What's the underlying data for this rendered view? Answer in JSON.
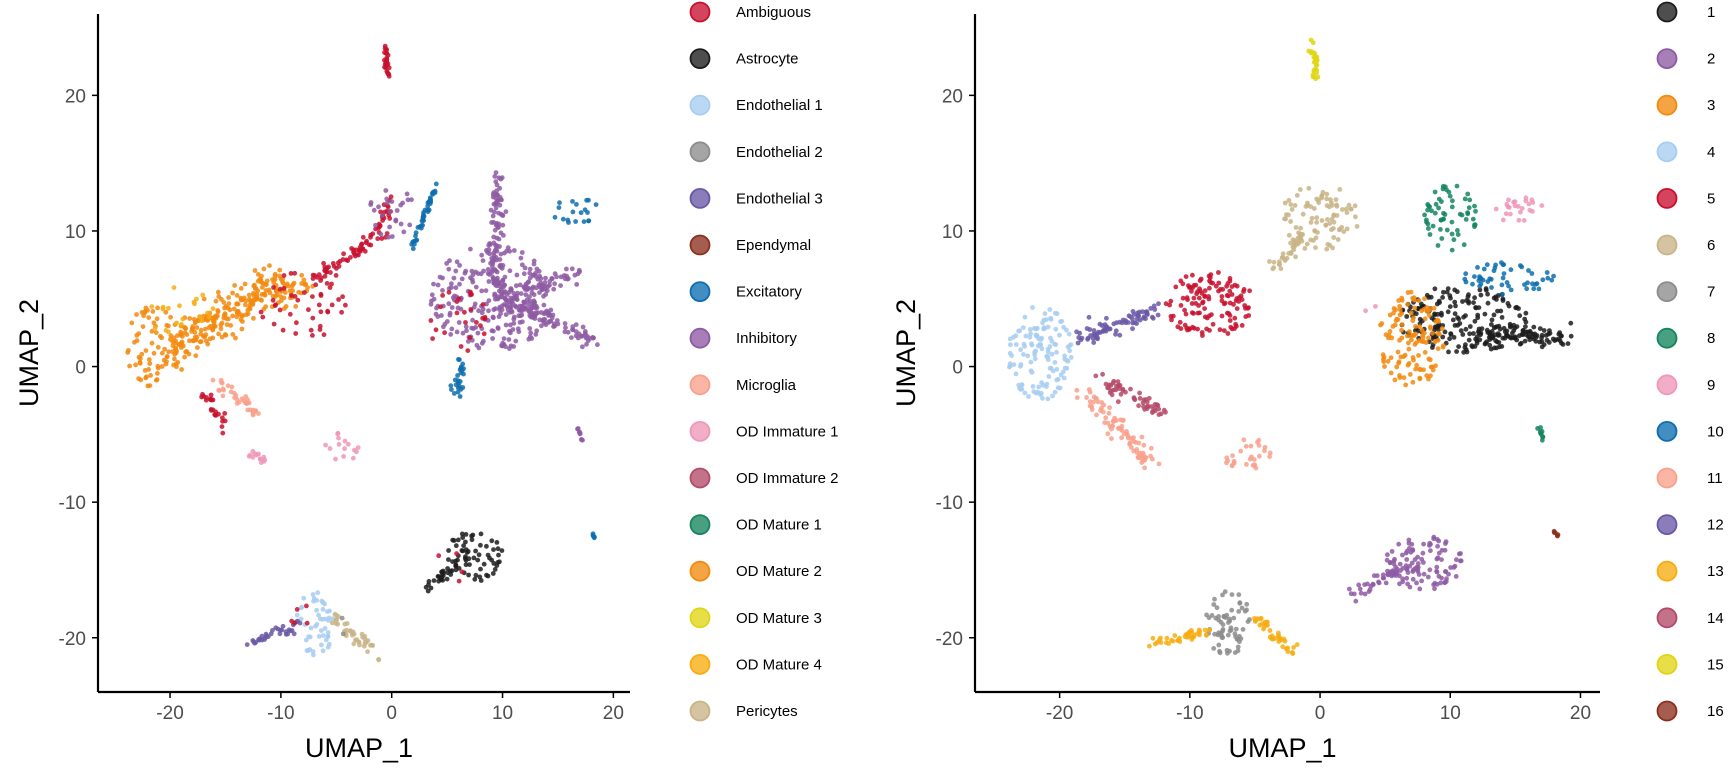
{
  "chart_data": [
    {
      "type": "scatter",
      "title": "",
      "xlabel": "UMAP_1",
      "ylabel": "UMAP_2",
      "xlim": [
        -26.5,
        21.5
      ],
      "ylim": [
        -24,
        26
      ],
      "x_ticks": [
        -20,
        -10,
        0,
        10,
        20
      ],
      "y_ticks": [
        -20,
        -10,
        0,
        10,
        20
      ],
      "x_tick_labels": [
        "-20",
        "-10",
        "0",
        "10",
        "20"
      ],
      "y_tick_labels": [
        "-20",
        "-10",
        "0",
        "10",
        "20"
      ],
      "grid": false,
      "legend_position": "right",
      "legend": [
        {
          "label": "Ambiguous",
          "color": "#C8102E"
        },
        {
          "label": "Astrocyte",
          "color": "#1C1C1C"
        },
        {
          "label": "Endothelial 1",
          "color": "#A7CDF1"
        },
        {
          "label": "Endothelial 2",
          "color": "#8C8C8C"
        },
        {
          "label": "Endothelial 3",
          "color": "#6A58A6"
        },
        {
          "label": "Ependymal",
          "color": "#8B2F1C"
        },
        {
          "label": "Excitatory",
          "color": "#0D6DAF"
        },
        {
          "label": "Inhibitory",
          "color": "#8E5AA3"
        },
        {
          "label": "Microglia",
          "color": "#F9A08C"
        },
        {
          "label": "OD Immature 1",
          "color": "#EE97B7"
        },
        {
          "label": "OD Immature 2",
          "color": "#B44A69"
        },
        {
          "label": "OD Mature 1",
          "color": "#14855E"
        },
        {
          "label": "OD Mature 2",
          "color": "#F28A0F"
        },
        {
          "label": "OD Mature 3",
          "color": "#E0D514"
        },
        {
          "label": "OD Mature 4",
          "color": "#F7AD11"
        },
        {
          "label": "Pericytes",
          "color": "#C8B486"
        }
      ],
      "clusters": [
        {
          "series": "Ambiguous",
          "color": "#C8102E",
          "shape": "line",
          "path": [
            [
              -0.6,
              24
            ],
            [
              -0.3,
              21
            ]
          ],
          "spread": 0.25
        },
        {
          "series": "OD Mature 2",
          "color": "#F28A0F",
          "shape": "blob",
          "center": [
            -21.5,
            1.5
          ],
          "radius": [
            2.5,
            3
          ],
          "density": 2
        },
        {
          "series": "OD Mature 2",
          "color": "#F28A0F",
          "shape": "line",
          "path": [
            [
              -20,
              1
            ],
            [
              -16,
              3.5
            ],
            [
              -12,
              5.5
            ],
            [
              -8,
              6
            ]
          ],
          "spread": 1.4
        },
        {
          "series": "OD Mature 4",
          "color": "#F7AD11",
          "shape": "blob",
          "center": [
            -19,
            4
          ],
          "radius": [
            3,
            2
          ],
          "density": 0.8
        },
        {
          "series": "Ambiguous",
          "color": "#C8102E",
          "shape": "blob",
          "center": [
            -8,
            4.5
          ],
          "radius": [
            4,
            2.5
          ],
          "density": 1
        },
        {
          "series": "Ambiguous",
          "color": "#C8102E",
          "shape": "line",
          "path": [
            [
              -7,
              6.5
            ],
            [
              -4,
              8
            ],
            [
              -1,
              10
            ],
            [
              0,
              12
            ]
          ],
          "spread": 0.6
        },
        {
          "series": "Inhibitory",
          "color": "#8E5AA3",
          "shape": "blob",
          "center": [
            0,
            11.5
          ],
          "radius": [
            2,
            2
          ],
          "density": 1.5
        },
        {
          "series": "Inhibitory",
          "color": "#8E5AA3",
          "shape": "blob",
          "center": [
            9,
            5
          ],
          "radius": [
            5.5,
            4
          ],
          "density": 2.5
        },
        {
          "series": "Inhibitory",
          "color": "#8E5AA3",
          "shape": "line",
          "path": [
            [
              9.5,
              14
            ],
            [
              9.5,
              5
            ]
          ],
          "spread": 0.7
        },
        {
          "series": "Inhibitory",
          "color": "#8E5AA3",
          "shape": "line",
          "path": [
            [
              10,
              5
            ],
            [
              18,
              2
            ]
          ],
          "spread": 0.7
        },
        {
          "series": "Inhibitory",
          "color": "#8E5AA3",
          "shape": "line",
          "path": [
            [
              10,
              5
            ],
            [
              17,
              7
            ]
          ],
          "spread": 0.7
        },
        {
          "series": "Ambiguous",
          "color": "#C8102E",
          "shape": "blob",
          "center": [
            6,
            3.5
          ],
          "radius": [
            3,
            2.5
          ],
          "density": 0.8
        },
        {
          "series": "Excitatory",
          "color": "#0D6DAF",
          "shape": "blob",
          "center": [
            16.5,
            11.5
          ],
          "radius": [
            2.2,
            1
          ],
          "density": 2
        },
        {
          "series": "Excitatory",
          "color": "#0D6DAF",
          "shape": "line",
          "path": [
            [
              6,
              0.5
            ],
            [
              6,
              -2
            ]
          ],
          "spread": 0.6
        },
        {
          "series": "Excitatory",
          "color": "#0D6DAF",
          "shape": "line",
          "path": [
            [
              2,
              9
            ],
            [
              4,
              13.5
            ]
          ],
          "spread": 0.2
        },
        {
          "series": "Microglia",
          "color": "#F9A08C",
          "shape": "line",
          "path": [
            [
              -16,
              -1
            ],
            [
              -12,
              -3.5
            ]
          ],
          "spread": 0.5
        },
        {
          "series": "Ambiguous",
          "color": "#C8102E",
          "shape": "line",
          "path": [
            [
              -17,
              -2
            ],
            [
              -15,
              -4.5
            ]
          ],
          "spread": 0.4
        },
        {
          "series": "OD Immature 1",
          "color": "#EE97B7",
          "shape": "line",
          "path": [
            [
              -13,
              -6
            ],
            [
              -11.5,
              -7
            ]
          ],
          "spread": 0.3
        },
        {
          "series": "OD Immature 1",
          "color": "#EE97B7",
          "shape": "blob",
          "center": [
            -4.5,
            -6
          ],
          "radius": [
            1.5,
            1.2
          ],
          "density": 2
        },
        {
          "series": "Inhibitory",
          "color": "#8E5AA3",
          "shape": "line",
          "path": [
            [
              16.8,
              -4.5
            ],
            [
              17.2,
              -5.5
            ]
          ],
          "spread": 0.15
        },
        {
          "series": "Excitatory",
          "color": "#0D6DAF",
          "shape": "line",
          "path": [
            [
              18,
              -12.2
            ],
            [
              18.3,
              -12.6
            ]
          ],
          "spread": 0.08
        },
        {
          "series": "Astrocyte",
          "color": "#1C1C1C",
          "shape": "blob",
          "center": [
            7.5,
            -14
          ],
          "radius": [
            2.5,
            2
          ],
          "density": 3
        },
        {
          "series": "Astrocyte",
          "color": "#1C1C1C",
          "shape": "line",
          "path": [
            [
              3,
              -16.5
            ],
            [
              6,
              -14.5
            ]
          ],
          "spread": 0.4
        },
        {
          "series": "Ambiguous",
          "color": "#C8102E",
          "shape": "blob",
          "center": [
            6,
            -14
          ],
          "radius": [
            2.5,
            2
          ],
          "density": 0.2
        },
        {
          "series": "Endothelial 1",
          "color": "#A7CDF1",
          "shape": "blob",
          "center": [
            -7,
            -19
          ],
          "radius": [
            1.8,
            2.5
          ],
          "density": 2.5
        },
        {
          "series": "Endothelial 3",
          "color": "#6A58A6",
          "shape": "line",
          "path": [
            [
              -13,
              -20.5
            ],
            [
              -8.5,
              -19
            ]
          ],
          "spread": 0.4
        },
        {
          "series": "Pericytes",
          "color": "#C8B486",
          "shape": "line",
          "path": [
            [
              -5.5,
              -18.5
            ],
            [
              -1,
              -21.5
            ]
          ],
          "spread": 0.5
        },
        {
          "series": "Endothelial 2",
          "color": "#8C8C8C",
          "shape": "blob",
          "center": [
            -4.5,
            -19
          ],
          "radius": [
            1.2,
            0.8
          ],
          "density": 0.5
        },
        {
          "series": "Ambiguous",
          "color": "#C8102E",
          "shape": "blob",
          "center": [
            -6,
            -19
          ],
          "radius": [
            4,
            1.5
          ],
          "density": 0.2
        }
      ]
    },
    {
      "type": "scatter",
      "title": "",
      "xlabel": "UMAP_1",
      "ylabel": "UMAP_2",
      "xlim": [
        -26.5,
        21.5
      ],
      "ylim": [
        -24,
        26
      ],
      "x_ticks": [
        -20,
        -10,
        0,
        10,
        20
      ],
      "y_ticks": [
        -20,
        -10,
        0,
        10,
        20
      ],
      "x_tick_labels": [
        "-20",
        "-10",
        "0",
        "10",
        "20"
      ],
      "y_tick_labels": [
        "-20",
        "-10",
        "0",
        "10",
        "20"
      ],
      "grid": false,
      "legend_position": "right",
      "legend": [
        {
          "label": "1",
          "color": "#1C1C1C"
        },
        {
          "label": "2",
          "color": "#8E5AA3"
        },
        {
          "label": "3",
          "color": "#F28A0F"
        },
        {
          "label": "4",
          "color": "#A7CDF1"
        },
        {
          "label": "5",
          "color": "#C8102E"
        },
        {
          "label": "6",
          "color": "#C8B486"
        },
        {
          "label": "7",
          "color": "#8C8C8C"
        },
        {
          "label": "8",
          "color": "#14855E"
        },
        {
          "label": "9",
          "color": "#EE97B7"
        },
        {
          "label": "10",
          "color": "#0D6DAF"
        },
        {
          "label": "11",
          "color": "#F9A08C"
        },
        {
          "label": "12",
          "color": "#6A58A6"
        },
        {
          "label": "13",
          "color": "#F7AD11"
        },
        {
          "label": "14",
          "color": "#B44A69"
        },
        {
          "label": "15",
          "color": "#E0D514"
        },
        {
          "label": "16",
          "color": "#8B2F1C"
        }
      ],
      "clusters": [
        {
          "series": "15",
          "color": "#E0D514",
          "shape": "line",
          "path": [
            [
              -0.6,
              24
            ],
            [
              -0.3,
              21
            ]
          ],
          "spread": 0.25
        },
        {
          "series": "4",
          "color": "#A7CDF1",
          "shape": "blob",
          "center": [
            -21.5,
            1
          ],
          "radius": [
            2.5,
            3.5
          ],
          "density": 2.5
        },
        {
          "series": "12",
          "color": "#6A58A6",
          "shape": "line",
          "path": [
            [
              -18.5,
              2
            ],
            [
              -13,
              4
            ]
          ],
          "spread": 0.8
        },
        {
          "series": "5",
          "color": "#C8102E",
          "shape": "blob",
          "center": [
            -8.5,
            4.5
          ],
          "radius": [
            3.5,
            2.5
          ],
          "density": 2.5
        },
        {
          "series": "6",
          "color": "#C8B486",
          "shape": "blob",
          "center": [
            0,
            11
          ],
          "radius": [
            3,
            2.5
          ],
          "density": 2
        },
        {
          "series": "6",
          "color": "#C8B486",
          "shape": "line",
          "path": [
            [
              -1,
              10
            ],
            [
              -4,
              7
            ]
          ],
          "spread": 0.5
        },
        {
          "series": "8",
          "color": "#14855E",
          "shape": "blob",
          "center": [
            10,
            11
          ],
          "radius": [
            2,
            2.5
          ],
          "density": 2
        },
        {
          "series": "9",
          "color": "#EE97B7",
          "shape": "blob",
          "center": [
            15.5,
            11.5
          ],
          "radius": [
            2,
            1
          ],
          "density": 2
        },
        {
          "series": "1",
          "color": "#1C1C1C",
          "shape": "blob",
          "center": [
            11,
            3.5
          ],
          "radius": [
            5,
            2.5
          ],
          "density": 2.5
        },
        {
          "series": "1",
          "color": "#1C1C1C",
          "shape": "line",
          "path": [
            [
              12,
              2.5
            ],
            [
              19,
              2
            ]
          ],
          "spread": 0.8
        },
        {
          "series": "10",
          "color": "#0D6DAF",
          "shape": "blob",
          "center": [
            14.5,
            6.5
          ],
          "radius": [
            3.5,
            1.2
          ],
          "density": 2
        },
        {
          "series": "3",
          "color": "#F28A0F",
          "shape": "blob",
          "center": [
            7,
            2
          ],
          "radius": [
            2.5,
            3.5
          ],
          "density": 2.5
        },
        {
          "series": "9",
          "color": "#EE97B7",
          "shape": "blob",
          "center": [
            3.5,
            4
          ],
          "radius": [
            1.2,
            0.6
          ],
          "density": 0.5
        },
        {
          "series": "11",
          "color": "#F9A08C",
          "shape": "line",
          "path": [
            [
              -18,
              -2
            ],
            [
              -13,
              -7
            ]
          ],
          "spread": 0.7
        },
        {
          "series": "14",
          "color": "#B44A69",
          "shape": "line",
          "path": [
            [
              -17,
              -1
            ],
            [
              -12,
              -3.5
            ]
          ],
          "spread": 0.6
        },
        {
          "series": "11",
          "color": "#F9A08C",
          "shape": "blob",
          "center": [
            -5.5,
            -6.5
          ],
          "radius": [
            2,
            1.2
          ],
          "density": 2
        },
        {
          "series": "8",
          "color": "#14855E",
          "shape": "line",
          "path": [
            [
              16.8,
              -4.5
            ],
            [
              17.2,
              -5.5
            ]
          ],
          "spread": 0.15
        },
        {
          "series": "16",
          "color": "#8B2F1C",
          "shape": "line",
          "path": [
            [
              18,
              -12.2
            ],
            [
              18.3,
              -12.6
            ]
          ],
          "spread": 0.08
        },
        {
          "series": "2",
          "color": "#8E5AA3",
          "shape": "blob",
          "center": [
            8,
            -14.5
          ],
          "radius": [
            3,
            2
          ],
          "density": 3
        },
        {
          "series": "2",
          "color": "#8E5AA3",
          "shape": "line",
          "path": [
            [
              2.5,
              -17
            ],
            [
              6,
              -15
            ]
          ],
          "spread": 0.5
        },
        {
          "series": "7",
          "color": "#8C8C8C",
          "shape": "blob",
          "center": [
            -7,
            -19
          ],
          "radius": [
            1.8,
            2.5
          ],
          "density": 2.5
        },
        {
          "series": "13",
          "color": "#F7AD11",
          "shape": "line",
          "path": [
            [
              -13,
              -20.5
            ],
            [
              -8.5,
              -19.5
            ]
          ],
          "spread": 0.4
        },
        {
          "series": "13",
          "color": "#F7AD11",
          "shape": "line",
          "path": [
            [
              -5,
              -18.5
            ],
            [
              -1.5,
              -21.5
            ]
          ],
          "spread": 0.5
        }
      ]
    }
  ]
}
